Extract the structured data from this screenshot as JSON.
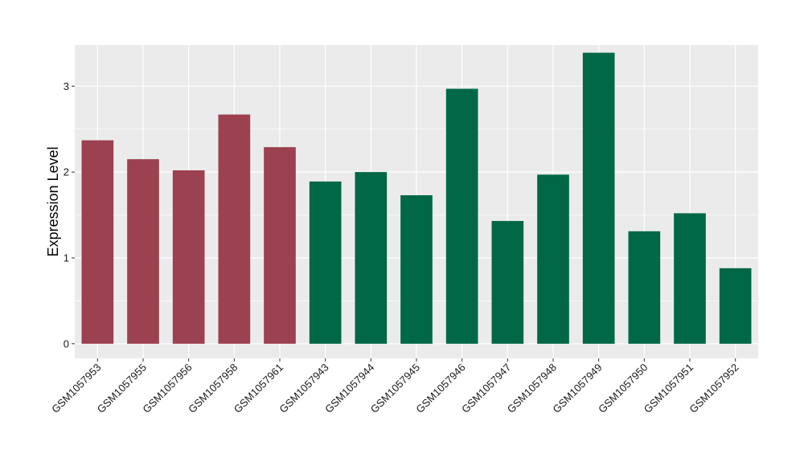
{
  "chart_data": {
    "type": "bar",
    "title": "",
    "xlabel": "",
    "ylabel": "Expression Level",
    "ylim": [
      -0.17,
      3.48
    ],
    "yticks": [
      0,
      1,
      2,
      3
    ],
    "ytick_labels": [
      "0",
      "1",
      "2",
      "3"
    ],
    "grid": true,
    "legend": "none",
    "categories": [
      "GSM1057953",
      "GSM1057955",
      "GSM1057956",
      "GSM1057958",
      "GSM1057961",
      "GSM1057943",
      "GSM1057944",
      "GSM1057945",
      "GSM1057946",
      "GSM1057947",
      "GSM1057948",
      "GSM1057949",
      "GSM1057950",
      "GSM1057951",
      "GSM1057952"
    ],
    "values": [
      2.37,
      2.15,
      2.02,
      2.67,
      2.29,
      1.89,
      2.0,
      1.73,
      2.97,
      1.43,
      1.97,
      3.39,
      1.31,
      1.52,
      0.88
    ],
    "bar_colors": [
      "#9b4150",
      "#9b4150",
      "#9b4150",
      "#9b4150",
      "#9b4150",
      "#006847",
      "#006847",
      "#006847",
      "#006847",
      "#006847",
      "#006847",
      "#006847",
      "#006847",
      "#006847",
      "#006847"
    ],
    "panel_background": "#ebebeb",
    "gridline_color": "#ffffff"
  }
}
